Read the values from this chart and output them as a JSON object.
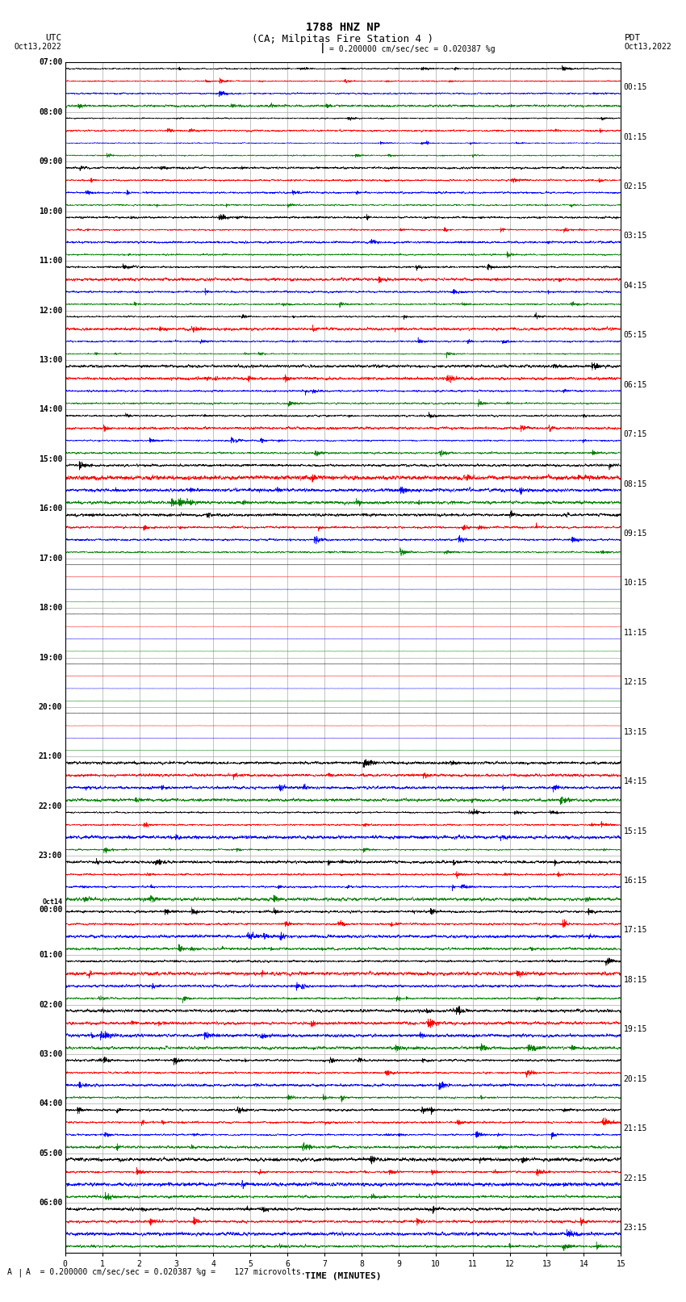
{
  "title_line1": "1788 HNZ NP",
  "title_line2": "(CA; Milpitas Fire Station 4 )",
  "scale_text": "= 0.200000 cm/sec/sec = 0.020387 %g",
  "bottom_text": "A  = 0.200000 cm/sec/sec = 0.020387 %g =    127 microvolts.",
  "left_label": "UTC",
  "right_label": "PDT",
  "date_left": "Oct13,2022",
  "date_right": "Oct13,2022",
  "xlabel": "TIME (MINUTES)",
  "left_times": [
    "07:00",
    "08:00",
    "09:00",
    "10:00",
    "11:00",
    "12:00",
    "13:00",
    "14:00",
    "15:00",
    "16:00",
    "17:00",
    "18:00",
    "19:00",
    "20:00",
    "21:00",
    "22:00",
    "23:00",
    "Oct14\n00:00",
    "01:00",
    "02:00",
    "03:00",
    "04:00",
    "05:00",
    "06:00"
  ],
  "right_times": [
    "00:15",
    "01:15",
    "02:15",
    "03:15",
    "04:15",
    "05:15",
    "06:15",
    "07:15",
    "08:15",
    "09:15",
    "10:15",
    "11:15",
    "12:15",
    "13:15",
    "14:15",
    "15:15",
    "16:15",
    "17:15",
    "18:15",
    "19:15",
    "20:15",
    "21:15",
    "22:15",
    "23:15"
  ],
  "n_rows": 24,
  "traces_per_row": 4,
  "trace_colors": [
    "black",
    "red",
    "blue",
    "green"
  ],
  "xmin": 0,
  "xmax": 15,
  "bg_color": "white",
  "grid_color": "#aaaaaa",
  "title_fontsize": 10,
  "label_fontsize": 8,
  "tick_fontsize": 7,
  "figsize": [
    8.5,
    16.13
  ],
  "row_amplitudes": [
    0.35,
    0.25,
    0.3,
    0.35,
    0.4,
    0.45,
    0.45,
    0.4,
    0.5,
    0.55,
    0.02,
    0.02,
    0.02,
    0.02,
    0.55,
    0.4,
    0.45,
    0.5,
    0.5,
    0.55,
    0.5,
    0.55,
    0.55,
    0.55
  ]
}
